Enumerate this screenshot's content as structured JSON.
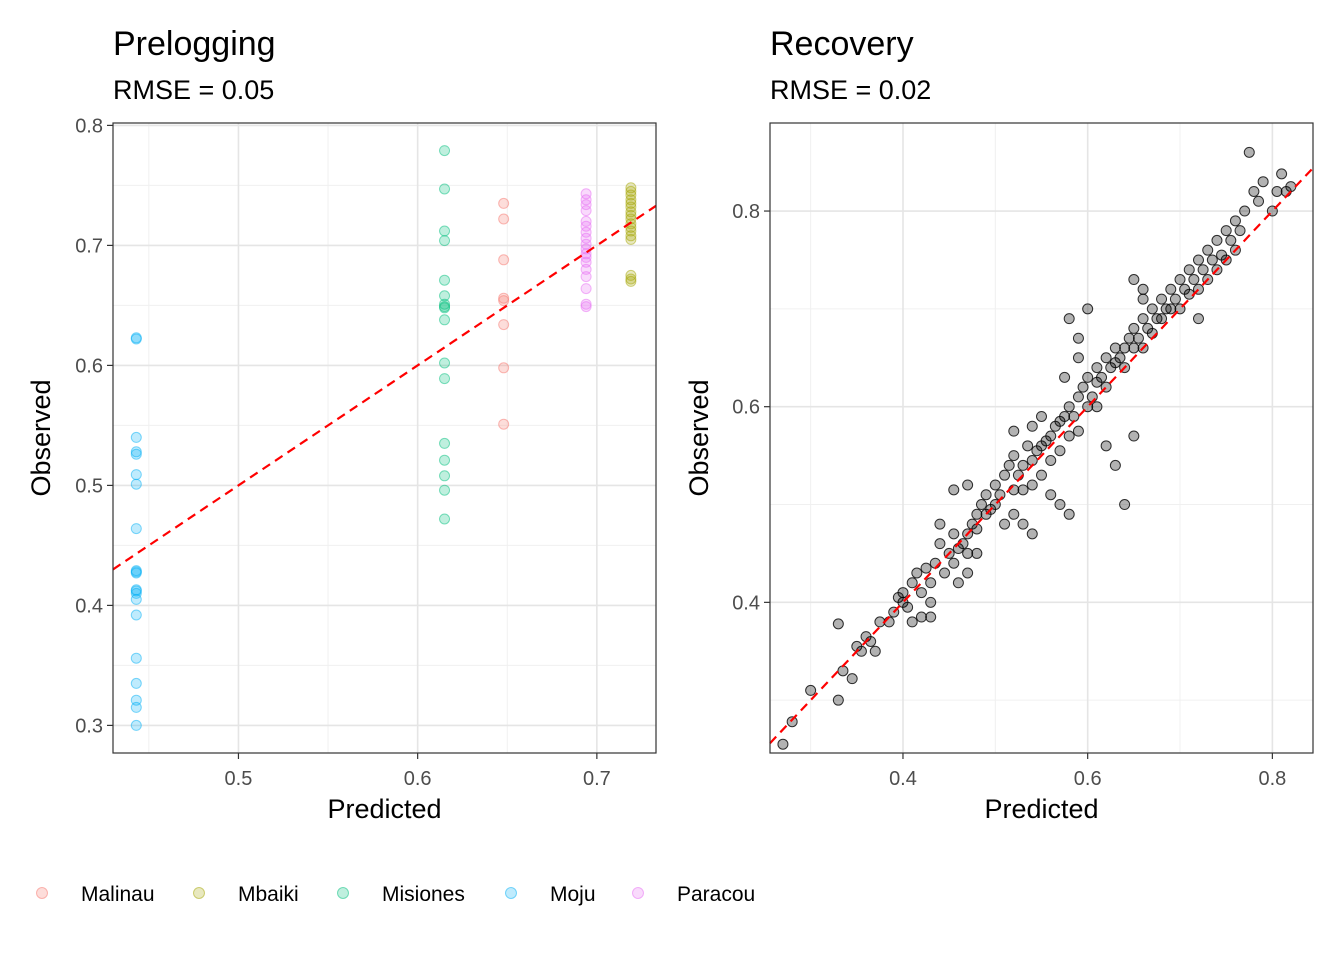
{
  "chart_data": [
    {
      "type": "scatter",
      "title": "Prelogging",
      "subtitle": "RMSE = 0.05",
      "xlabel": "Predicted",
      "ylabel": "Observed",
      "xlim": [
        0.43,
        0.733
      ],
      "ylim": [
        0.277,
        0.802
      ],
      "xticks": [
        0.5,
        0.6,
        0.7
      ],
      "xtick_labels": [
        "0.5",
        "0.6",
        "0.7"
      ],
      "yticks": [
        0.3,
        0.4,
        0.5,
        0.6,
        0.7,
        0.8
      ],
      "ytick_labels": [
        "0.3",
        "0.4",
        "0.5",
        "0.6",
        "0.7",
        "0.8"
      ],
      "reference_line": "y = x (red dashed)",
      "grid": true,
      "legend": "bottom-left, shared",
      "series": [
        {
          "name": "Malinau",
          "color": "#F8766D",
          "x": [
            0.648,
            0.648,
            0.648,
            0.648,
            0.648,
            0.648,
            0.648,
            0.648
          ],
          "y": [
            0.735,
            0.722,
            0.688,
            0.656,
            0.654,
            0.634,
            0.598,
            0.551
          ]
        },
        {
          "name": "Mbaiki",
          "color": "#A3A500",
          "x": [
            0.719,
            0.719,
            0.719,
            0.719,
            0.719,
            0.719,
            0.719,
            0.719,
            0.719,
            0.719,
            0.719,
            0.719,
            0.719,
            0.719,
            0.719,
            0.719,
            0.719
          ],
          "y": [
            0.748,
            0.745,
            0.742,
            0.738,
            0.735,
            0.732,
            0.728,
            0.725,
            0.722,
            0.718,
            0.715,
            0.712,
            0.708,
            0.705,
            0.675,
            0.672,
            0.67
          ]
        },
        {
          "name": "Misiones",
          "color": "#00BF7D",
          "x": [
            0.615,
            0.615,
            0.615,
            0.615,
            0.615,
            0.615,
            0.615,
            0.615,
            0.615,
            0.615,
            0.615,
            0.615,
            0.615,
            0.615,
            0.615,
            0.615,
            0.615
          ],
          "y": [
            0.779,
            0.747,
            0.712,
            0.704,
            0.671,
            0.658,
            0.651,
            0.649,
            0.638,
            0.602,
            0.589,
            0.535,
            0.521,
            0.508,
            0.496,
            0.472,
            0.648
          ]
        },
        {
          "name": "Moju",
          "color": "#00B0F6",
          "x": [
            0.443,
            0.443,
            0.443,
            0.443,
            0.443,
            0.443,
            0.443,
            0.443,
            0.443,
            0.443,
            0.443,
            0.443,
            0.443,
            0.443,
            0.443,
            0.443,
            0.443,
            0.443,
            0.443,
            0.443,
            0.443
          ],
          "y": [
            0.623,
            0.622,
            0.54,
            0.528,
            0.526,
            0.509,
            0.501,
            0.464,
            0.429,
            0.427,
            0.413,
            0.41,
            0.405,
            0.392,
            0.356,
            0.335,
            0.321,
            0.315,
            0.3,
            0.428,
            0.412
          ]
        },
        {
          "name": "Paracou",
          "color": "#E76BF3",
          "x": [
            0.694,
            0.694,
            0.694,
            0.694,
            0.694,
            0.694,
            0.694,
            0.694,
            0.694,
            0.694,
            0.694,
            0.694,
            0.694,
            0.694,
            0.694,
            0.694,
            0.694,
            0.694
          ],
          "y": [
            0.743,
            0.738,
            0.734,
            0.729,
            0.72,
            0.716,
            0.711,
            0.706,
            0.701,
            0.697,
            0.69,
            0.686,
            0.68,
            0.674,
            0.664,
            0.651,
            0.649,
            0.693
          ]
        }
      ]
    },
    {
      "type": "scatter",
      "title": "Recovery",
      "subtitle": "RMSE = 0.02",
      "xlabel": "Predicted",
      "ylabel": "Observed",
      "xlim": [
        0.256,
        0.844
      ],
      "ylim": [
        0.246,
        0.89
      ],
      "xticks": [
        0.4,
        0.6,
        0.8
      ],
      "xtick_labels": [
        "0.4",
        "0.6",
        "0.8"
      ],
      "yticks": [
        0.4,
        0.6,
        0.8
      ],
      "ytick_labels": [
        "0.4",
        "0.6",
        "0.8"
      ],
      "reference_line": "y = x (red dashed)",
      "grid": true,
      "series": [
        {
          "color": "#000000",
          "points": [
            [
              0.27,
              0.255
            ],
            [
              0.28,
              0.278
            ],
            [
              0.3,
              0.31
            ],
            [
              0.33,
              0.3
            ],
            [
              0.335,
              0.33
            ],
            [
              0.345,
              0.322
            ],
            [
              0.33,
              0.378
            ],
            [
              0.35,
              0.355
            ],
            [
              0.355,
              0.35
            ],
            [
              0.36,
              0.365
            ],
            [
              0.365,
              0.36
            ],
            [
              0.37,
              0.35
            ],
            [
              0.375,
              0.38
            ],
            [
              0.385,
              0.38
            ],
            [
              0.39,
              0.39
            ],
            [
              0.395,
              0.405
            ],
            [
              0.4,
              0.4
            ],
            [
              0.4,
              0.41
            ],
            [
              0.405,
              0.395
            ],
            [
              0.41,
              0.42
            ],
            [
              0.41,
              0.38
            ],
            [
              0.415,
              0.43
            ],
            [
              0.42,
              0.41
            ],
            [
              0.425,
              0.435
            ],
            [
              0.43,
              0.42
            ],
            [
              0.43,
              0.385
            ],
            [
              0.435,
              0.44
            ],
            [
              0.44,
              0.46
            ],
            [
              0.445,
              0.43
            ],
            [
              0.45,
              0.45
            ],
            [
              0.455,
              0.44
            ],
            [
              0.455,
              0.47
            ],
            [
              0.46,
              0.455
            ],
            [
              0.465,
              0.46
            ],
            [
              0.47,
              0.47
            ],
            [
              0.47,
              0.45
            ],
            [
              0.475,
              0.48
            ],
            [
              0.48,
              0.49
            ],
            [
              0.48,
              0.475
            ],
            [
              0.485,
              0.5
            ],
            [
              0.49,
              0.49
            ],
            [
              0.49,
              0.51
            ],
            [
              0.495,
              0.495
            ],
            [
              0.5,
              0.52
            ],
            [
              0.5,
              0.5
            ],
            [
              0.505,
              0.51
            ],
            [
              0.51,
              0.53
            ],
            [
              0.51,
              0.48
            ],
            [
              0.515,
              0.54
            ],
            [
              0.52,
              0.515
            ],
            [
              0.52,
              0.55
            ],
            [
              0.525,
              0.53
            ],
            [
              0.53,
              0.54
            ],
            [
              0.53,
              0.515
            ],
            [
              0.535,
              0.56
            ],
            [
              0.54,
              0.545
            ],
            [
              0.54,
              0.52
            ],
            [
              0.545,
              0.555
            ],
            [
              0.55,
              0.56
            ],
            [
              0.55,
              0.53
            ],
            [
              0.555,
              0.565
            ],
            [
              0.56,
              0.57
            ],
            [
              0.56,
              0.545
            ],
            [
              0.565,
              0.58
            ],
            [
              0.57,
              0.555
            ],
            [
              0.57,
              0.585
            ],
            [
              0.575,
              0.59
            ],
            [
              0.58,
              0.57
            ],
            [
              0.58,
              0.6
            ],
            [
              0.585,
              0.59
            ],
            [
              0.59,
              0.61
            ],
            [
              0.59,
              0.575
            ],
            [
              0.595,
              0.62
            ],
            [
              0.6,
              0.6
            ],
            [
              0.6,
              0.63
            ],
            [
              0.605,
              0.61
            ],
            [
              0.61,
              0.625
            ],
            [
              0.61,
              0.64
            ],
            [
              0.615,
              0.63
            ],
            [
              0.62,
              0.65
            ],
            [
              0.62,
              0.62
            ],
            [
              0.625,
              0.64
            ],
            [
              0.63,
              0.66
            ],
            [
              0.63,
              0.645
            ],
            [
              0.635,
              0.65
            ],
            [
              0.64,
              0.66
            ],
            [
              0.64,
              0.64
            ],
            [
              0.645,
              0.67
            ],
            [
              0.65,
              0.66
            ],
            [
              0.65,
              0.68
            ],
            [
              0.655,
              0.67
            ],
            [
              0.66,
              0.69
            ],
            [
              0.66,
              0.66
            ],
            [
              0.665,
              0.68
            ],
            [
              0.67,
              0.7
            ],
            [
              0.67,
              0.675
            ],
            [
              0.675,
              0.69
            ],
            [
              0.68,
              0.71
            ],
            [
              0.68,
              0.69
            ],
            [
              0.685,
              0.7
            ],
            [
              0.69,
              0.72
            ],
            [
              0.69,
              0.7
            ],
            [
              0.695,
              0.71
            ],
            [
              0.7,
              0.73
            ],
            [
              0.7,
              0.7
            ],
            [
              0.705,
              0.72
            ],
            [
              0.71,
              0.74
            ],
            [
              0.71,
              0.715
            ],
            [
              0.715,
              0.73
            ],
            [
              0.72,
              0.75
            ],
            [
              0.72,
              0.72
            ],
            [
              0.725,
              0.74
            ],
            [
              0.73,
              0.76
            ],
            [
              0.73,
              0.73
            ],
            [
              0.735,
              0.75
            ],
            [
              0.74,
              0.77
            ],
            [
              0.74,
              0.74
            ],
            [
              0.745,
              0.755
            ],
            [
              0.75,
              0.78
            ],
            [
              0.75,
              0.75
            ],
            [
              0.755,
              0.77
            ],
            [
              0.76,
              0.79
            ],
            [
              0.76,
              0.76
            ],
            [
              0.765,
              0.78
            ],
            [
              0.77,
              0.8
            ],
            [
              0.775,
              0.86
            ],
            [
              0.78,
              0.82
            ],
            [
              0.785,
              0.81
            ],
            [
              0.79,
              0.83
            ],
            [
              0.8,
              0.8
            ],
            [
              0.805,
              0.82
            ],
            [
              0.81,
              0.838
            ],
            [
              0.815,
              0.82
            ],
            [
              0.82,
              0.825
            ],
            [
              0.6,
              0.7
            ],
            [
              0.59,
              0.67
            ],
            [
              0.58,
              0.69
            ],
            [
              0.65,
              0.73
            ],
            [
              0.66,
              0.72
            ],
            [
              0.72,
              0.69
            ],
            [
              0.66,
              0.71
            ],
            [
              0.56,
              0.51
            ],
            [
              0.57,
              0.5
            ],
            [
              0.58,
              0.49
            ],
            [
              0.52,
              0.49
            ],
            [
              0.53,
              0.48
            ],
            [
              0.54,
              0.47
            ],
            [
              0.62,
              0.56
            ],
            [
              0.63,
              0.54
            ],
            [
              0.64,
              0.5
            ],
            [
              0.65,
              0.57
            ],
            [
              0.61,
              0.6
            ],
            [
              0.48,
              0.45
            ],
            [
              0.47,
              0.43
            ],
            [
              0.46,
              0.42
            ],
            [
              0.52,
              0.575
            ],
            [
              0.54,
              0.58
            ],
            [
              0.55,
              0.59
            ],
            [
              0.575,
              0.63
            ],
            [
              0.59,
              0.65
            ],
            [
              0.47,
              0.52
            ],
            [
              0.455,
              0.515
            ],
            [
              0.44,
              0.48
            ],
            [
              0.43,
              0.4
            ],
            [
              0.42,
              0.385
            ]
          ]
        }
      ]
    }
  ]
}
